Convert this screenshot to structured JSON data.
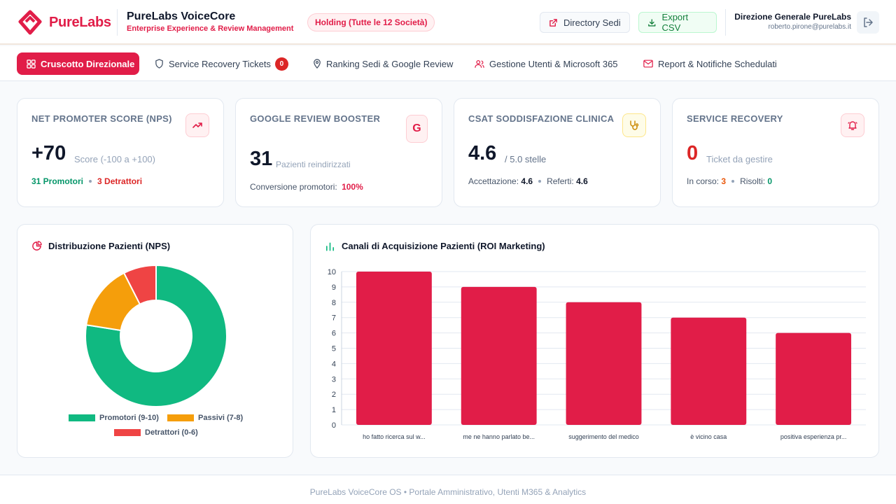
{
  "header": {
    "logo_text": "PureLabs",
    "app_title": "PureLabs VoiceCore",
    "app_subtitle": "Enterprise Experience & Review Management",
    "holding_badge": "Holding (Tutte le 12 Società)",
    "directory_button": "Directory Sedi",
    "export_button": "Export CSV",
    "user_name": "Direzione Generale PureLabs",
    "user_email": "roberto.pirone@purelabs.it"
  },
  "nav": {
    "tabs": [
      {
        "label": "Cruscotto Direzionale",
        "icon": "dashboard-icon",
        "active": true
      },
      {
        "label": "Service Recovery Tickets",
        "icon": "shield-icon",
        "badge": "0"
      },
      {
        "label": "Ranking Sedi & Google Review",
        "icon": "map-pin-icon"
      },
      {
        "label": "Gestione Utenti & Microsoft 365",
        "icon": "users-icon"
      },
      {
        "label": "Report & Notifiche Schedulati",
        "icon": "mail-icon"
      }
    ]
  },
  "kpis": {
    "nps": {
      "label": "NET PROMOTER SCORE (NPS)",
      "value": "+70",
      "unit": "Score (-100 a +100)",
      "promoters": "31 Promotori",
      "detractors": "3 Detrattori",
      "icon": "trending-up-icon"
    },
    "google": {
      "label": "GOOGLE REVIEW BOOSTER",
      "value": "31",
      "unit": "Pazienti reindirizzati",
      "conversion_label": "Conversione promotori:",
      "conversion_value": "100%",
      "icon": "google-icon"
    },
    "csat": {
      "label": "CSAT SODDISFAZIONE CLINICA",
      "value": "4.6",
      "unit": "/ 5.0 stelle",
      "accept_label": "Accettazione:",
      "accept_value": "4.6",
      "ref_label": "Referti:",
      "ref_value": "4.6",
      "icon": "stethoscope-icon"
    },
    "recovery": {
      "label": "SERVICE RECOVERY",
      "value": "0",
      "unit": "Ticket da gestire",
      "progress_label": "In corso:",
      "progress_value": "3",
      "resolved_label": "Risolti:",
      "resolved_value": "0",
      "icon": "bell-icon"
    }
  },
  "donut_panel": {
    "title": "Distribuzione Pazienti (NPS)",
    "icon": "pie-chart-icon"
  },
  "bar_panel": {
    "title": "Canali di Acquisizione Pazienti (ROI Marketing)",
    "icon": "bar-chart-icon"
  },
  "chart_data": [
    {
      "type": "pie",
      "title": "Distribuzione Pazienti (NPS)",
      "labels": [
        "Promotori (9-10)",
        "Passivi (7-8)",
        "Detrattori (0-6)"
      ],
      "values": [
        31,
        6,
        3
      ],
      "colors": [
        "#10b981",
        "#f59e0b",
        "#ef4444"
      ],
      "legend": "bottom"
    },
    {
      "type": "bar",
      "title": "Canali di Acquisizione Pazienti (ROI Marketing)",
      "categories": [
        "ho fatto ricerca sul w...",
        "me ne hanno parlato be...",
        "suggerimento del medico",
        "è vicino casa",
        "positiva esperienza pr..."
      ],
      "values": [
        10,
        9,
        8,
        7,
        6
      ],
      "ylim": [
        0,
        10
      ],
      "yticks": [
        "0",
        "1",
        "2",
        "3",
        "4",
        "5",
        "6",
        "7",
        "8",
        "9",
        "10"
      ],
      "color": "#e11d48",
      "grid": true
    }
  ],
  "footer": {
    "text": "PureLabs VoiceCore OS • Portale Amministrativo, Utenti M365 & Analytics"
  }
}
